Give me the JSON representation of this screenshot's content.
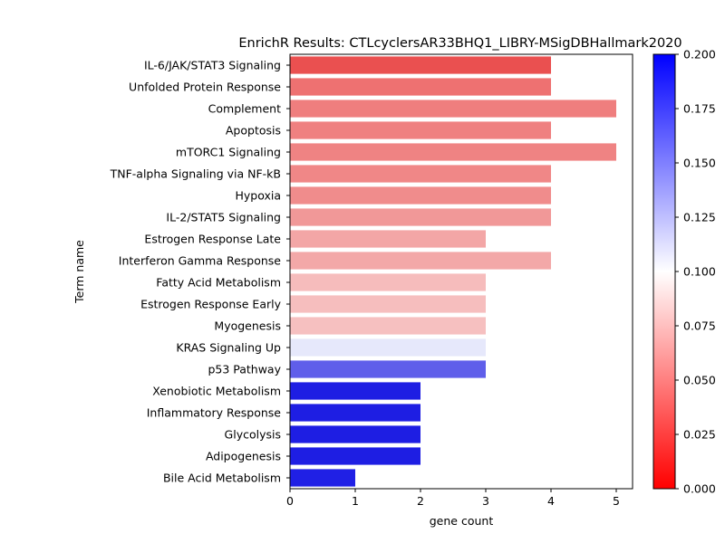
{
  "chart_data": {
    "type": "bar",
    "orientation": "horizontal",
    "title": "EnrichR Results: CTLcyclersAR33BHQ1_LIBRY-MSigDBHallmark2020",
    "xlabel": "gene count",
    "ylabel": "Term name",
    "xlim": [
      0,
      5.25
    ],
    "xticks": [
      "0",
      "1",
      "2",
      "3",
      "4",
      "5"
    ],
    "categories": [
      "IL-6/JAK/STAT3 Signaling",
      "Unfolded Protein Response",
      "Complement",
      "Apoptosis",
      "mTORC1 Signaling",
      "TNF-alpha Signaling via NF-kB",
      "Hypoxia",
      "IL-2/STAT5 Signaling",
      "Estrogen Response Late",
      "Interferon Gamma Response",
      "Fatty Acid Metabolism",
      "Estrogen Response Early",
      "Myogenesis",
      "KRAS Signaling Up",
      "p53 Pathway",
      "Xenobiotic Metabolism",
      "Inflammatory Response",
      "Glycolysis",
      "Adipogenesis",
      "Bile Acid Metabolism"
    ],
    "values": [
      4,
      4,
      5,
      4,
      5,
      4,
      4,
      4,
      3,
      4,
      3,
      3,
      3,
      3,
      3,
      2,
      2,
      2,
      2,
      1
    ],
    "colors": [
      "#ea5050",
      "#ee7171",
      "#ef7e7e",
      "#ef8080",
      "#ef8383",
      "#f08787",
      "#f08c8c",
      "#f19898",
      "#f3a6a6",
      "#f3a8a8",
      "#f6bcbc",
      "#f6bebe",
      "#f6c0c0",
      "#e6e8fb",
      "#5f5eea",
      "#1e1ee3",
      "#1e1ee3",
      "#1e1ee3",
      "#1e1ee3",
      "#2020e5"
    ],
    "colorbar": {
      "range": [
        0.0,
        0.2
      ],
      "ticks": [
        "0.000",
        "0.025",
        "0.050",
        "0.075",
        "0.100",
        "0.125",
        "0.150",
        "0.175",
        "0.200"
      ],
      "low_color": "#ff0000",
      "mid_color": "#ffffff",
      "high_color": "#0000ff"
    }
  }
}
